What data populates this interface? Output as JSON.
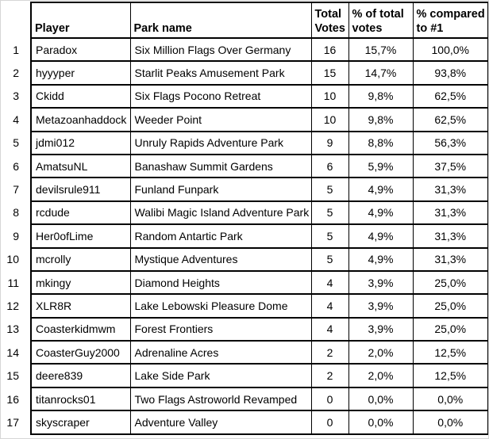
{
  "chart_data": {
    "type": "table",
    "columns": [
      "Player",
      "Park name",
      "Total Votes",
      "% of total votes",
      "% compared to #1"
    ],
    "rank_header": "",
    "rows": [
      {
        "rank": "1",
        "player": "Paradox",
        "park": "Six Million Flags Over Germany",
        "votes": "16",
        "pct_of_total": "15,7%",
        "pct_vs_first": "100,0%"
      },
      {
        "rank": "2",
        "player": "hyyyper",
        "park": "Starlit Peaks Amusement Park",
        "votes": "15",
        "pct_of_total": "14,7%",
        "pct_vs_first": "93,8%"
      },
      {
        "rank": "3",
        "player": "Ckidd",
        "park": "Six Flags Pocono Retreat",
        "votes": "10",
        "pct_of_total": "9,8%",
        "pct_vs_first": "62,5%"
      },
      {
        "rank": "4",
        "player": "Metazoanhaddock",
        "park": "Weeder Point",
        "votes": "10",
        "pct_of_total": "9,8%",
        "pct_vs_first": "62,5%"
      },
      {
        "rank": "5",
        "player": "jdmi012",
        "park": "Unruly Rapids Adventure Park",
        "votes": "9",
        "pct_of_total": "8,8%",
        "pct_vs_first": "56,3%"
      },
      {
        "rank": "6",
        "player": "AmatsuNL",
        "park": "Banashaw Summit Gardens",
        "votes": "6",
        "pct_of_total": "5,9%",
        "pct_vs_first": "37,5%"
      },
      {
        "rank": "7",
        "player": "devilsrule911",
        "park": "Funland Funpark",
        "votes": "5",
        "pct_of_total": "4,9%",
        "pct_vs_first": "31,3%"
      },
      {
        "rank": "8",
        "player": "rcdude",
        "park": "Walibi Magic Island Adventure Park",
        "votes": "5",
        "pct_of_total": "4,9%",
        "pct_vs_first": "31,3%"
      },
      {
        "rank": "9",
        "player": "Her0ofLime",
        "park": "Random Antartic Park",
        "votes": "5",
        "pct_of_total": "4,9%",
        "pct_vs_first": "31,3%"
      },
      {
        "rank": "10",
        "player": "mcrolly",
        "park": "Mystique Adventures",
        "votes": "5",
        "pct_of_total": "4,9%",
        "pct_vs_first": "31,3%"
      },
      {
        "rank": "11",
        "player": "mkingy",
        "park": "Diamond Heights",
        "votes": "4",
        "pct_of_total": "3,9%",
        "pct_vs_first": "25,0%"
      },
      {
        "rank": "12",
        "player": "XLR8R",
        "park": "Lake Lebowski Pleasure Dome",
        "votes": "4",
        "pct_of_total": "3,9%",
        "pct_vs_first": "25,0%"
      },
      {
        "rank": "13",
        "player": "Coasterkidmwm",
        "park": "Forest Frontiers",
        "votes": "4",
        "pct_of_total": "3,9%",
        "pct_vs_first": "25,0%"
      },
      {
        "rank": "14",
        "player": "CoasterGuy2000",
        "park": "Adrenaline Acres",
        "votes": "2",
        "pct_of_total": "2,0%",
        "pct_vs_first": "12,5%"
      },
      {
        "rank": "15",
        "player": "deere839",
        "park": "Lake Side Park",
        "votes": "2",
        "pct_of_total": "2,0%",
        "pct_vs_first": "12,5%"
      },
      {
        "rank": "16",
        "player": "titanrocks01",
        "park": "Two Flags Astroworld Revamped",
        "votes": "0",
        "pct_of_total": "0,0%",
        "pct_vs_first": "0,0%"
      },
      {
        "rank": "17",
        "player": "skyscraper",
        "park": "Adventure Valley",
        "votes": "0",
        "pct_of_total": "0,0%",
        "pct_vs_first": "0,0%"
      }
    ],
    "colors": {
      "text": "#000000",
      "border": "#000000",
      "background": "#ffffff",
      "frame": "#d6d6d6"
    }
  }
}
